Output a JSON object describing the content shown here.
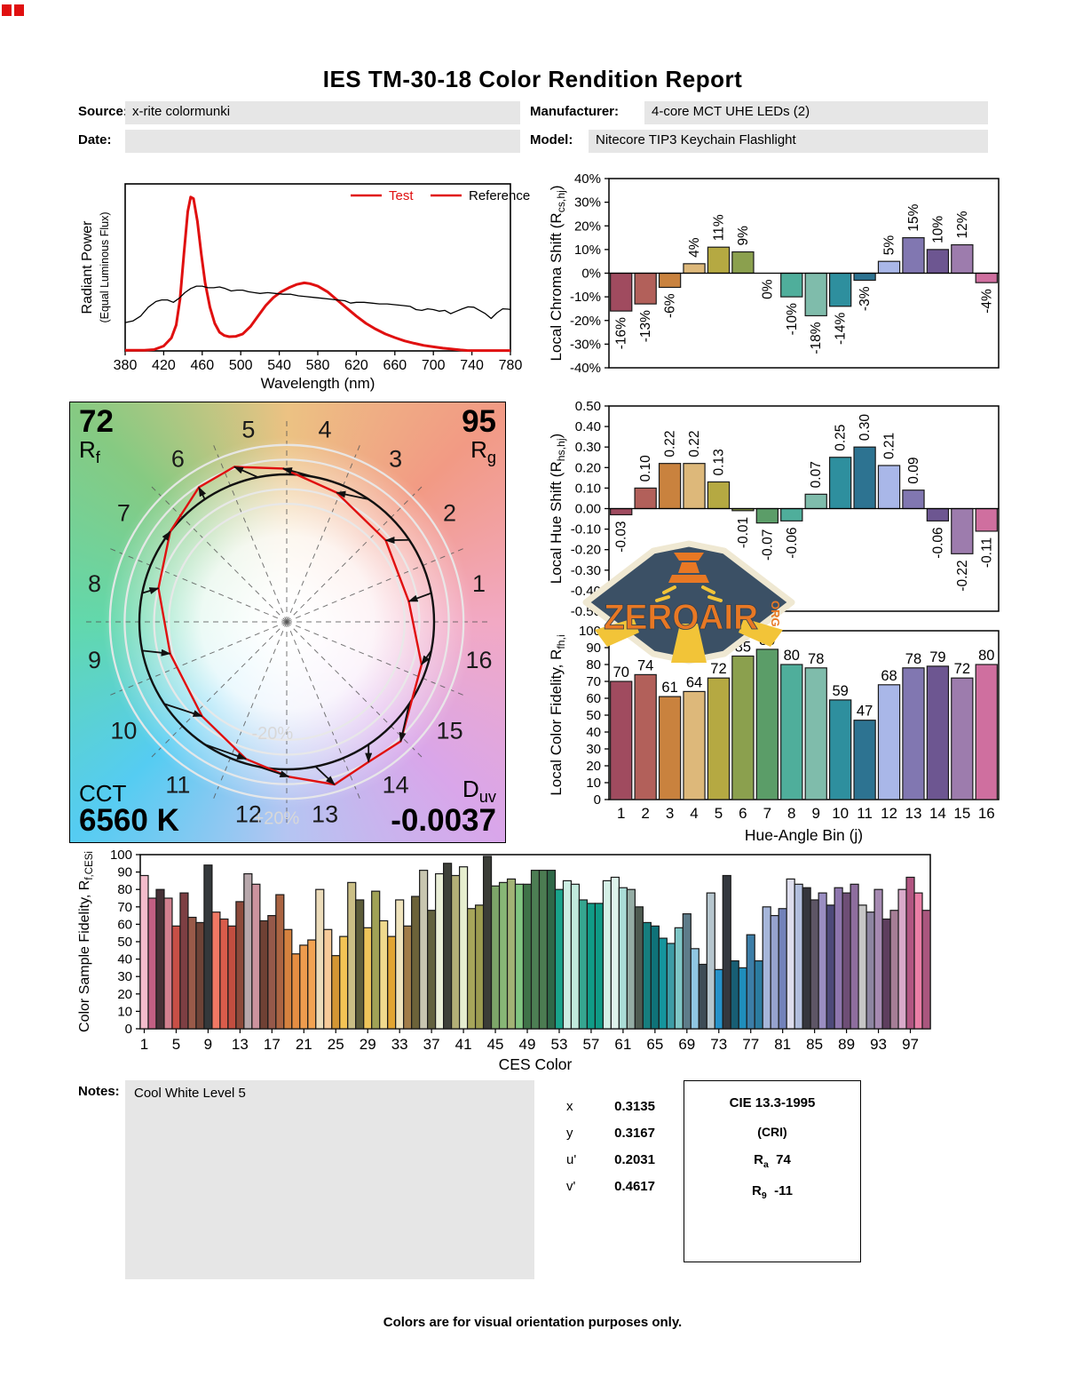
{
  "header": {
    "title": "IES TM-30-18 Color Rendition Report",
    "source_label": "Source:",
    "source": "x-rite colormunki",
    "date_label": "Date:",
    "date": "",
    "manufacturer_label": "Manufacturer:",
    "manufacturer": "4-core MCT UHE LEDs (2)",
    "model_label": "Model:",
    "model": "Nitecore TIP3 Keychain Flashlight"
  },
  "cvg": {
    "rf_value": "72",
    "rf_sym": "R",
    "rf_sub": "f",
    "rg_value": "95",
    "rg_sym": "R",
    "rg_sub": "g",
    "cct_label": "CCT",
    "cct_value": "6560 K",
    "duv_sym": "D",
    "duv_sub": "uv",
    "duv_value": "-0.0037",
    "plus_ring_label": "+20%",
    "minus_ring_label": "-20%",
    "bin_labels": [
      "1",
      "2",
      "3",
      "4",
      "5",
      "6",
      "7",
      "8",
      "9",
      "10",
      "11",
      "12",
      "13",
      "14",
      "15",
      "16"
    ]
  },
  "logo": {
    "word": "ZEROAIR",
    "org": "ORG"
  },
  "notes": {
    "label": "Notes:",
    "text": "Cool White Level 5"
  },
  "chromaticity": {
    "rows": [
      {
        "label": "x",
        "value": "0.3135"
      },
      {
        "label": "y",
        "value": "0.3167"
      },
      {
        "label": "u'",
        "value": "0.2031"
      },
      {
        "label": "v'",
        "value": "0.4617"
      }
    ]
  },
  "cri": {
    "title": "CIE 13.3-1995",
    "subtitle": "(CRI)",
    "ra_sym": "R",
    "ra_sub": "a",
    "ra_value": "74",
    "r9_sym": "R",
    "r9_sub": "9",
    "r9_value": "-11"
  },
  "footer": "Colors are for visual orientation purposes only.",
  "bin_colors": [
    "#a04b5f",
    "#b2605a",
    "#c9823e",
    "#ddb87a",
    "#b5a942",
    "#8ba04e",
    "#5b9d68",
    "#4fae9b",
    "#7fbcab",
    "#2e8f9e",
    "#2d7391",
    "#a9b7e8",
    "#8177b1",
    "#6d5691",
    "#9d7cad",
    "#cf6f9f"
  ],
  "ces_colors": [
    "#f4bccb",
    "#c25f83",
    "#473137",
    "#d2808f",
    "#c84f46",
    "#7d3f43",
    "#995a49",
    "#6e4337",
    "#34383b",
    "#f07864",
    "#da5c4b",
    "#c24e40",
    "#8d4a3b",
    "#b7a7ab",
    "#cc939e",
    "#6f4134",
    "#96594a",
    "#ab6442",
    "#d5823f",
    "#e58d42",
    "#ee9c4e",
    "#f2a353",
    "#ecdcba",
    "#f8cb9a",
    "#d29634",
    "#f3c455",
    "#cbbf86",
    "#5d5d3a",
    "#eec45a",
    "#a0a256",
    "#f0da8e",
    "#e2a532",
    "#f0e4bd",
    "#a27c49",
    "#6c6239",
    "#c8c6b0",
    "#62613f",
    "#eaefd8",
    "#3e403a",
    "#b3af77",
    "#e6eecf",
    "#a7a65a",
    "#9c9c50",
    "#3b3d37",
    "#7da669",
    "#87b776",
    "#a2b375",
    "#81c681",
    "#3f7348",
    "#4d7e54",
    "#4c7c52",
    "#2f6848",
    "#18a48b",
    "#cbede2",
    "#c1e9dc",
    "#36a690",
    "#109c87",
    "#0f9b86",
    "#d4f0e6",
    "#def3eb",
    "#aadcd6",
    "#94aca4",
    "#4e5b51",
    "#167e7e",
    "#0f7278",
    "#15959d",
    "#3d9ca6",
    "#7ec6c6",
    "#5e7c8a",
    "#90c6e2",
    "#3e4c56",
    "#b6c6ce",
    "#2692ca",
    "#34383e",
    "#185e74",
    "#1f8ebc",
    "#3c7ea8",
    "#2b7ca0",
    "#a6b6da",
    "#96a2ce",
    "#7282ba",
    "#dedeee",
    "#b2bede",
    "#35353d",
    "#5e5666",
    "#9a8ec2",
    "#4e4a7a",
    "#8e76ae",
    "#6e4e76",
    "#8e6e9e",
    "#c6c6c6",
    "#8e86a2",
    "#a68ab2",
    "#5e3e5e",
    "#a67e96",
    "#daaaca",
    "#b25682",
    "#ea7ea6",
    "#aa567e"
  ],
  "chart_data": [
    {
      "id": "spd",
      "type": "line",
      "xlabel": "Wavelength (nm)",
      "ylabel": "Radiant Power",
      "ylabel2": "(Equal Luminous Flux)",
      "xlim": [
        380,
        780
      ],
      "xticks": [
        380,
        420,
        460,
        500,
        540,
        580,
        620,
        660,
        700,
        740,
        780
      ],
      "legend": [
        {
          "label": "Test",
          "line_color": "#e01010",
          "text_color": "#e01010"
        },
        {
          "label": "Reference",
          "line_color": "#e01010",
          "text_color": "#000000"
        }
      ],
      "series": [
        {
          "name": "Test",
          "color": "#e01010",
          "width": 3,
          "points": [
            [
              380,
              0.004
            ],
            [
              400,
              0.004
            ],
            [
              410,
              0.008
            ],
            [
              420,
              0.03
            ],
            [
              428,
              0.08
            ],
            [
              433,
              0.16
            ],
            [
              437,
              0.32
            ],
            [
              441,
              0.6
            ],
            [
              445,
              0.86
            ],
            [
              448,
              0.95
            ],
            [
              451,
              0.94
            ],
            [
              455,
              0.8
            ],
            [
              459,
              0.6
            ],
            [
              463,
              0.42
            ],
            [
              468,
              0.27
            ],
            [
              473,
              0.17
            ],
            [
              478,
              0.115
            ],
            [
              483,
              0.095
            ],
            [
              488,
              0.088
            ],
            [
              495,
              0.09
            ],
            [
              502,
              0.105
            ],
            [
              510,
              0.15
            ],
            [
              518,
              0.215
            ],
            [
              526,
              0.28
            ],
            [
              534,
              0.33
            ],
            [
              542,
              0.365
            ],
            [
              550,
              0.39
            ],
            [
              558,
              0.41
            ],
            [
              566,
              0.42
            ],
            [
              572,
              0.415
            ],
            [
              580,
              0.4
            ],
            [
              590,
              0.365
            ],
            [
              600,
              0.315
            ],
            [
              610,
              0.265
            ],
            [
              620,
              0.215
            ],
            [
              630,
              0.17
            ],
            [
              640,
              0.135
            ],
            [
              650,
              0.105
            ],
            [
              660,
              0.082
            ],
            [
              670,
              0.062
            ],
            [
              680,
              0.047
            ],
            [
              690,
              0.034
            ],
            [
              700,
              0.025
            ],
            [
              710,
              0.017
            ],
            [
              720,
              0.011
            ],
            [
              728,
              0.006
            ],
            [
              735,
              0.003
            ],
            [
              750,
              0.002
            ],
            [
              780,
              0.002
            ]
          ]
        },
        {
          "name": "Reference",
          "color": "#000000",
          "width": 1.3,
          "points": [
            [
              380,
              0.175
            ],
            [
              388,
              0.185
            ],
            [
              396,
              0.215
            ],
            [
              404,
              0.27
            ],
            [
              412,
              0.305
            ],
            [
              418,
              0.315
            ],
            [
              424,
              0.315
            ],
            [
              430,
              0.3
            ],
            [
              436,
              0.325
            ],
            [
              442,
              0.36
            ],
            [
              448,
              0.385
            ],
            [
              454,
              0.4
            ],
            [
              460,
              0.4
            ],
            [
              466,
              0.39
            ],
            [
              472,
              0.39
            ],
            [
              478,
              0.395
            ],
            [
              484,
              0.385
            ],
            [
              490,
              0.37
            ],
            [
              496,
              0.375
            ],
            [
              502,
              0.375
            ],
            [
              508,
              0.365
            ],
            [
              514,
              0.36
            ],
            [
              520,
              0.355
            ],
            [
              528,
              0.36
            ],
            [
              536,
              0.355
            ],
            [
              544,
              0.35
            ],
            [
              552,
              0.35
            ],
            [
              560,
              0.34
            ],
            [
              568,
              0.335
            ],
            [
              576,
              0.33
            ],
            [
              584,
              0.325
            ],
            [
              592,
              0.32
            ],
            [
              600,
              0.315
            ],
            [
              608,
              0.31
            ],
            [
              614,
              0.295
            ],
            [
              620,
              0.3
            ],
            [
              628,
              0.3
            ],
            [
              636,
              0.295
            ],
            [
              644,
              0.29
            ],
            [
              652,
              0.29
            ],
            [
              660,
              0.285
            ],
            [
              668,
              0.28
            ],
            [
              676,
              0.275
            ],
            [
              682,
              0.255
            ],
            [
              688,
              0.25
            ],
            [
              694,
              0.26
            ],
            [
              700,
              0.255
            ],
            [
              706,
              0.245
            ],
            [
              712,
              0.25
            ],
            [
              718,
              0.23
            ],
            [
              724,
              0.245
            ],
            [
              730,
              0.26
            ],
            [
              736,
              0.272
            ],
            [
              742,
              0.27
            ],
            [
              748,
              0.25
            ],
            [
              754,
              0.23
            ],
            [
              760,
              0.2
            ],
            [
              766,
              0.235
            ],
            [
              772,
              0.26
            ],
            [
              778,
              0.258
            ],
            [
              780,
              0.255
            ]
          ]
        }
      ]
    },
    {
      "id": "chroma",
      "type": "bar",
      "ylabel_pre": "Local Chroma Shift (R",
      "ylabel_sub": "cs,hj",
      "ylabel_post": ")",
      "ylim": [
        -40,
        40
      ],
      "ytick_step": 10,
      "ytick_suffix": "%",
      "categories": [
        1,
        2,
        3,
        4,
        5,
        6,
        7,
        8,
        9,
        10,
        11,
        12,
        13,
        14,
        15,
        16
      ],
      "values": [
        -16,
        -13,
        -6,
        4,
        11,
        9,
        0,
        -10,
        -18,
        -14,
        -3,
        5,
        15,
        10,
        12,
        -4
      ],
      "value_suffix": "%",
      "label_style": "rotated"
    },
    {
      "id": "hue",
      "type": "bar",
      "ylabel_pre": "Local Hue Shift (R",
      "ylabel_sub": "hs,hj",
      "ylabel_post": ")",
      "ylim": [
        -0.5,
        0.5
      ],
      "ytick_step": 0.1,
      "ytick_decimals": 2,
      "categories": [
        1,
        2,
        3,
        4,
        5,
        6,
        7,
        8,
        9,
        10,
        11,
        12,
        13,
        14,
        15,
        16
      ],
      "values": [
        -0.03,
        0.1,
        0.22,
        0.22,
        0.13,
        -0.01,
        -0.07,
        -0.06,
        0.07,
        0.25,
        0.3,
        0.21,
        0.09,
        -0.06,
        -0.22,
        -0.11
      ],
      "value_decimals": 2,
      "label_style": "rotated"
    },
    {
      "id": "fidelity",
      "type": "bar",
      "ylabel_pre": "Local Color Fidelity, R",
      "ylabel_sub": "fh,i",
      "ylabel_post": "",
      "xlabel": "Hue-Angle Bin (j)",
      "ylim": [
        0,
        100
      ],
      "ytick_step": 10,
      "categories": [
        1,
        2,
        3,
        4,
        5,
        6,
        7,
        8,
        9,
        10,
        11,
        12,
        13,
        14,
        15,
        16
      ],
      "values": [
        70,
        74,
        61,
        64,
        72,
        85,
        89,
        80,
        78,
        59,
        47,
        68,
        78,
        79,
        72,
        80
      ],
      "label_style": "top"
    },
    {
      "id": "ces",
      "type": "bar",
      "ylabel_pre": "Color Sample Fidelity, R",
      "ylabel_sub": "f,CESi",
      "ylabel_post": "",
      "xlabel": "CES Color",
      "ylim": [
        0,
        100
      ],
      "ytick_step": 10,
      "xticks": [
        1,
        5,
        9,
        13,
        17,
        21,
        25,
        29,
        33,
        37,
        41,
        45,
        49,
        53,
        57,
        61,
        65,
        69,
        73,
        77,
        81,
        85,
        89,
        93,
        97
      ],
      "values": [
        88,
        75,
        80,
        75,
        59,
        78,
        64,
        61,
        94,
        67,
        63,
        59,
        73,
        89,
        83,
        62,
        65,
        77,
        57,
        43,
        48,
        51,
        80,
        57,
        42,
        53,
        84,
        74,
        58,
        79,
        62,
        53,
        74,
        59,
        76,
        91,
        68,
        89,
        95,
        88,
        93,
        69,
        71,
        99,
        82,
        84,
        86,
        83,
        83,
        91,
        91,
        91,
        80,
        85,
        83,
        74,
        72,
        72,
        85,
        87,
        81,
        80,
        70,
        61,
        59,
        52,
        49,
        58,
        66,
        46,
        37,
        78,
        34,
        88,
        39,
        35,
        54,
        39,
        70,
        65,
        69,
        86,
        83,
        81,
        74,
        78,
        71,
        81,
        78,
        83,
        71,
        67,
        80,
        63,
        68,
        80,
        87,
        78,
        68
      ],
      "label_style": "none"
    },
    {
      "id": "cvg_vectors",
      "type": "polar-vector",
      "rcs_percent": [
        -16,
        -13,
        -6,
        4,
        11,
        9,
        0,
        -10,
        -18,
        -14,
        -3,
        5,
        15,
        10,
        12,
        -4
      ],
      "rhs": [
        -0.03,
        0.1,
        0.22,
        0.22,
        0.13,
        -0.01,
        -0.07,
        -0.06,
        0.07,
        0.25,
        0.3,
        0.21,
        0.09,
        -0.06,
        -0.22,
        -0.11
      ],
      "rings": [
        0.8,
        0.9,
        1.1,
        1.2
      ]
    }
  ]
}
